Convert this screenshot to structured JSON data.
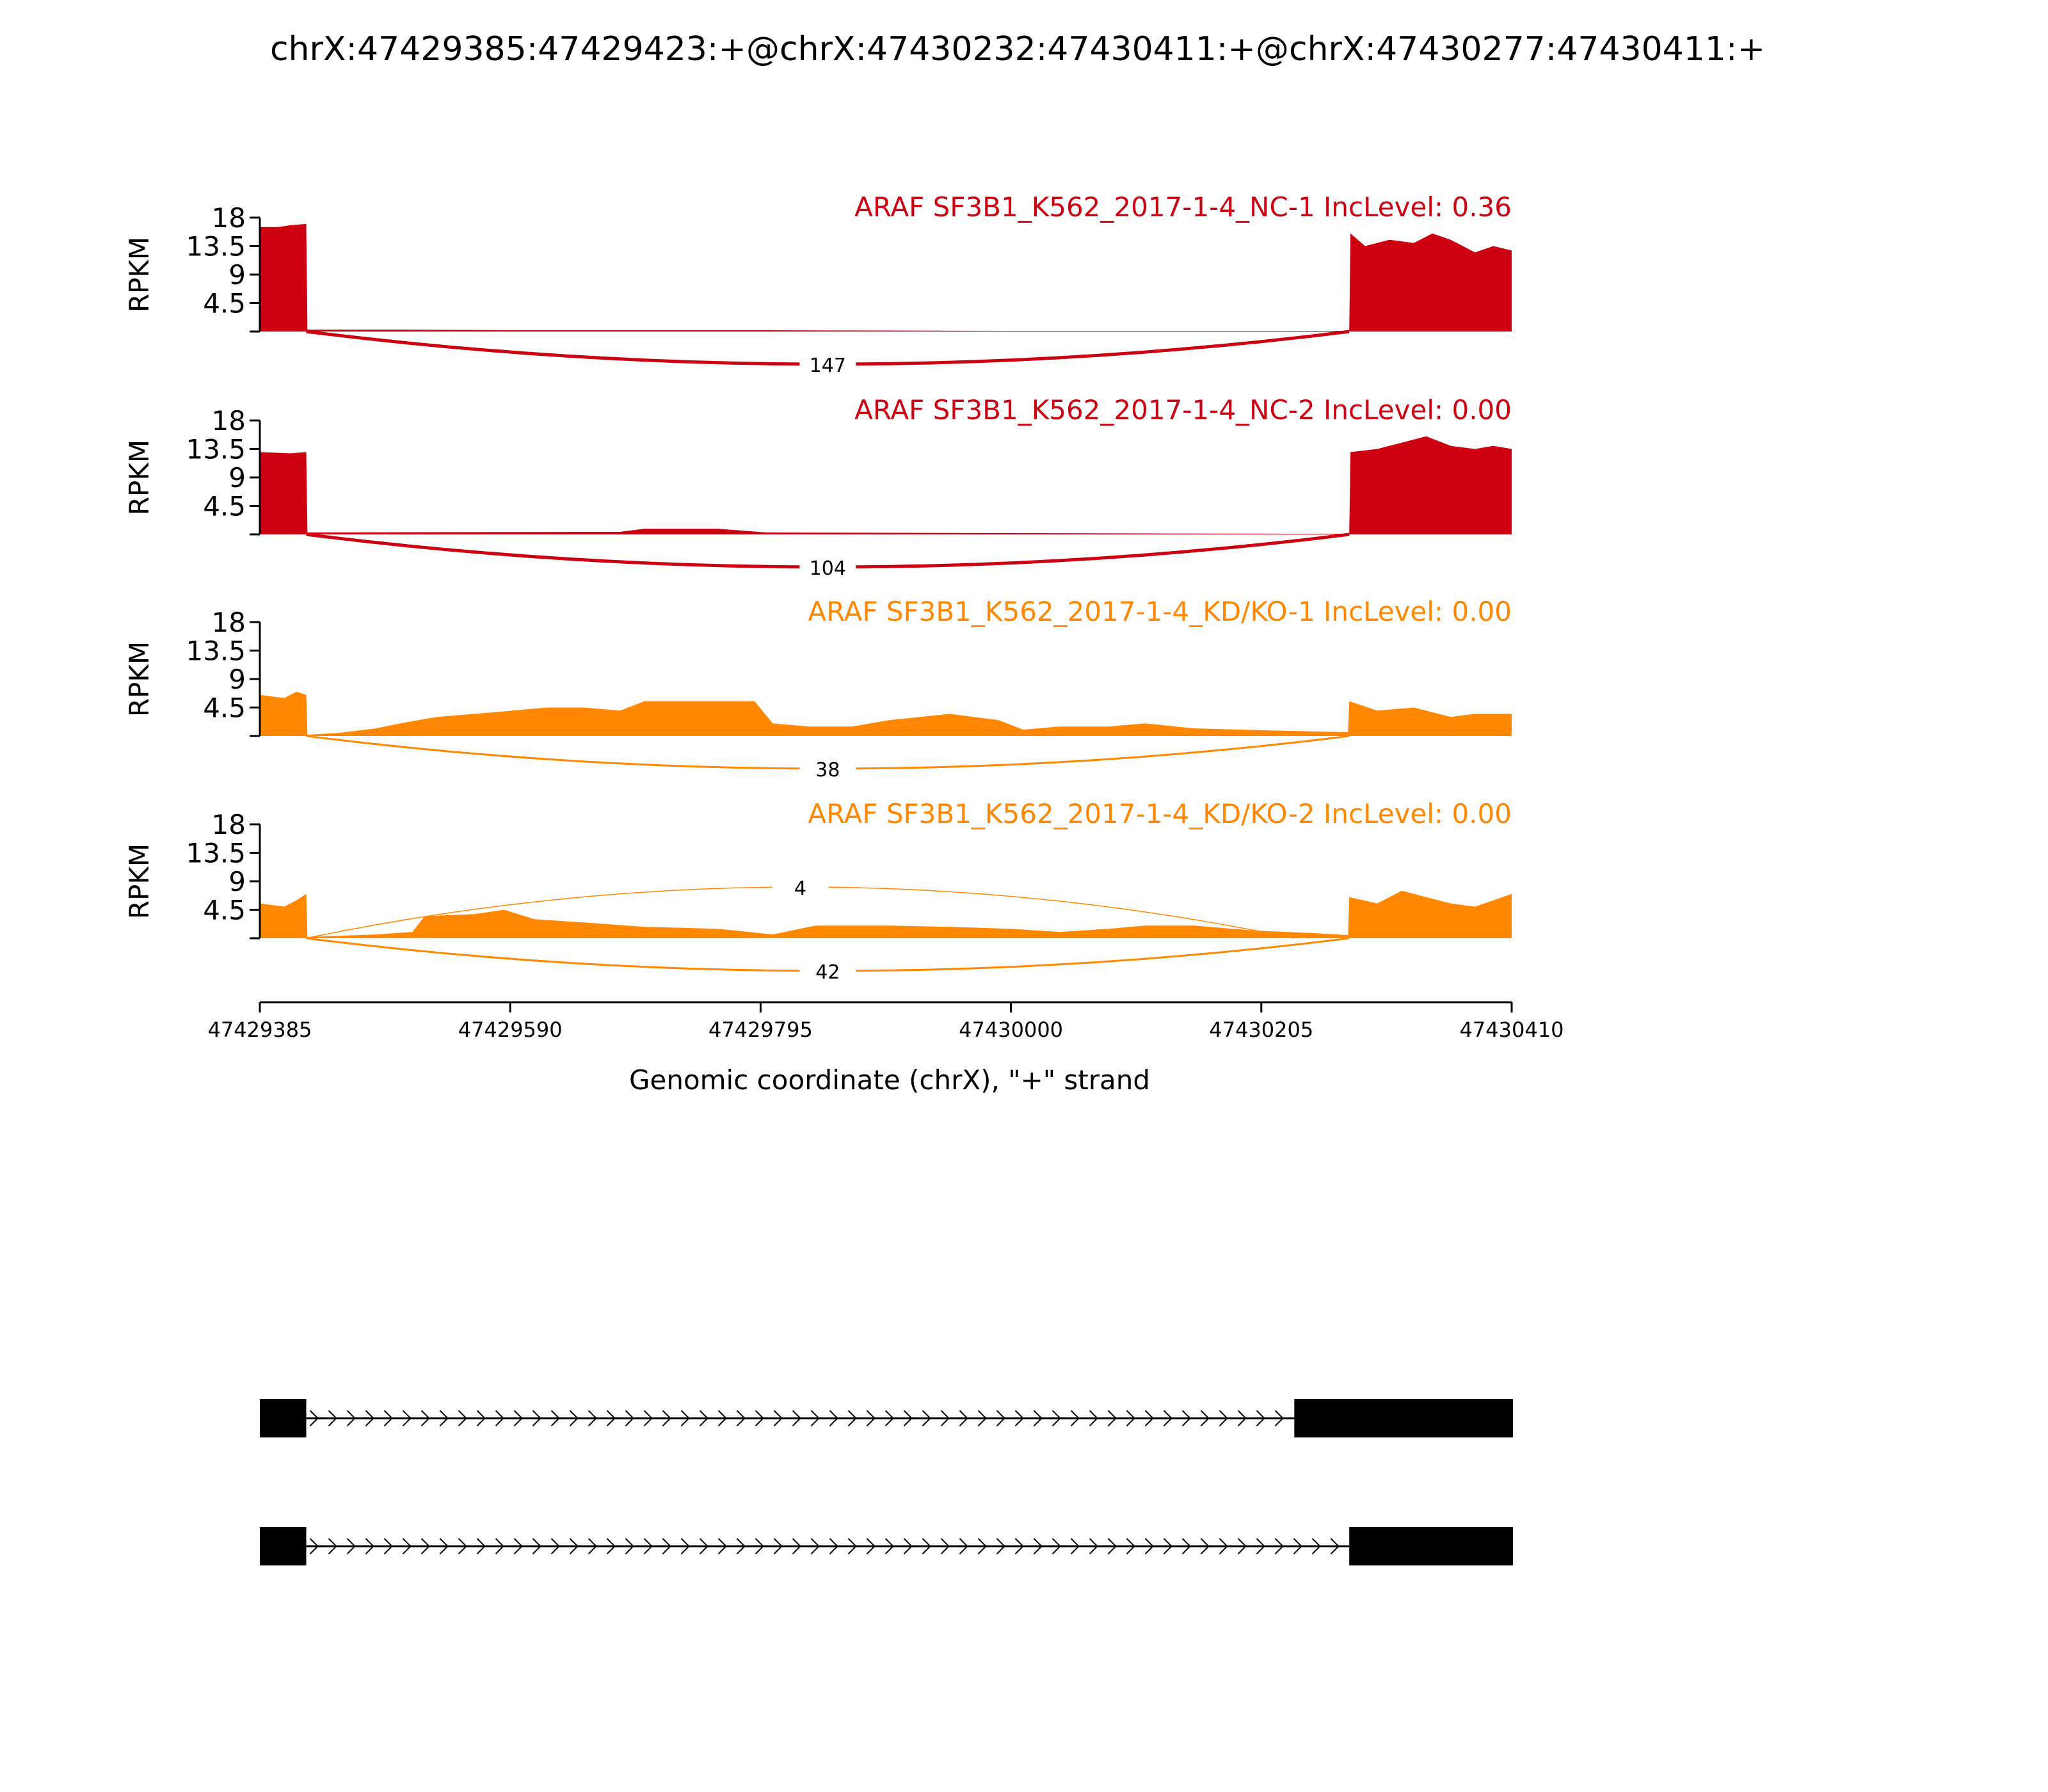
{
  "figure": {
    "title": "chrX:47429385:47429423:+@chrX:47430232:47430411:+@chrX:47430277:47430411:+"
  },
  "chart_data": {
    "type": "sashimi",
    "x_axis": {
      "label": "Genomic coordinate (chrX), \"+\" strand",
      "range": [
        47429385,
        47430410
      ],
      "ticks": [
        47429385,
        47429590,
        47429795,
        47430000,
        47430205,
        47430410
      ]
    },
    "y_axis": {
      "label": "RPKM",
      "range": [
        0,
        18
      ],
      "ticks": [
        "4.5",
        "9",
        "13.5",
        "18"
      ]
    },
    "exons": {
      "upstream": [
        47429385,
        47429423
      ],
      "alt_start": [
        47430232,
        47430411
      ],
      "short_start": [
        47430277,
        47430411
      ]
    },
    "tracks": [
      {
        "label": "ARAF SF3B1_K562_2017-1-4_NC-1 IncLevel: 0.36",
        "color": "#cc0011",
        "coverage": [
          [
            47429385,
            16.5
          ],
          [
            47429400,
            16.5
          ],
          [
            47429410,
            16.8
          ],
          [
            47429423,
            17.0
          ],
          [
            47429424,
            0.3
          ],
          [
            47429500,
            0.3
          ],
          [
            47429600,
            0.2
          ],
          [
            47429800,
            0.2
          ],
          [
            47430000,
            0.1
          ],
          [
            47430231,
            0.1
          ],
          [
            47430277,
            0.1
          ],
          [
            47430278,
            15.5
          ],
          [
            47430290,
            13.5
          ],
          [
            47430310,
            14.5
          ],
          [
            47430330,
            14.0
          ],
          [
            47430345,
            15.5
          ],
          [
            47430360,
            14.5
          ],
          [
            47430380,
            12.5
          ],
          [
            47430395,
            13.5
          ],
          [
            47430410,
            12.8
          ]
        ],
        "junctions": [
          {
            "from": 47429423,
            "to": 47430277,
            "count": "147",
            "side": "below"
          }
        ]
      },
      {
        "label": "ARAF SF3B1_K562_2017-1-4_NC-2 IncLevel: 0.00",
        "color": "#cc0011",
        "coverage": [
          [
            47429385,
            13.0
          ],
          [
            47429410,
            12.8
          ],
          [
            47429423,
            13.0
          ],
          [
            47429424,
            0.3
          ],
          [
            47429680,
            0.4
          ],
          [
            47429700,
            0.9
          ],
          [
            47429760,
            0.9
          ],
          [
            47429800,
            0.3
          ],
          [
            47430000,
            0.2
          ],
          [
            47430231,
            0.1
          ],
          [
            47430277,
            0.1
          ],
          [
            47430278,
            13.0
          ],
          [
            47430300,
            13.5
          ],
          [
            47430320,
            14.5
          ],
          [
            47430340,
            15.5
          ],
          [
            47430360,
            14.0
          ],
          [
            47430380,
            13.5
          ],
          [
            47430395,
            14.0
          ],
          [
            47430410,
            13.5
          ]
        ],
        "junctions": [
          {
            "from": 47429423,
            "to": 47430277,
            "count": "104",
            "side": "below"
          }
        ]
      },
      {
        "label": "ARAF SF3B1_K562_2017-1-4_KD/KO-1 IncLevel: 0.00",
        "color": "#ff8800",
        "coverage": [
          [
            47429385,
            6.5
          ],
          [
            47429405,
            6.0
          ],
          [
            47429415,
            7.0
          ],
          [
            47429423,
            6.5
          ],
          [
            47429424,
            0.2
          ],
          [
            47429450,
            0.5
          ],
          [
            47429480,
            1.2
          ],
          [
            47429500,
            2.0
          ],
          [
            47429530,
            3.0
          ],
          [
            47429580,
            3.8
          ],
          [
            47429620,
            4.5
          ],
          [
            47429650,
            4.5
          ],
          [
            47429680,
            4.0
          ],
          [
            47429700,
            5.5
          ],
          [
            47429750,
            5.5
          ],
          [
            47429790,
            5.5
          ],
          [
            47429805,
            2.0
          ],
          [
            47429835,
            1.5
          ],
          [
            47429870,
            1.5
          ],
          [
            47429900,
            2.5
          ],
          [
            47429950,
            3.5
          ],
          [
            47429990,
            2.5
          ],
          [
            47430010,
            1.0
          ],
          [
            47430040,
            1.5
          ],
          [
            47430080,
            1.5
          ],
          [
            47430110,
            2.0
          ],
          [
            47430150,
            1.2
          ],
          [
            47430230,
            0.8
          ],
          [
            47430276,
            0.6
          ],
          [
            47430277,
            5.5
          ],
          [
            47430300,
            4.0
          ],
          [
            47430330,
            4.5
          ],
          [
            47430360,
            3.0
          ],
          [
            47430380,
            3.5
          ],
          [
            47430410,
            3.5
          ]
        ],
        "junctions": [
          {
            "from": 47429423,
            "to": 47430277,
            "count": "38",
            "side": "below"
          }
        ]
      },
      {
        "label": "ARAF SF3B1_K562_2017-1-4_KD/KO-2 IncLevel: 0.00",
        "color": "#ff8800",
        "coverage": [
          [
            47429385,
            5.5
          ],
          [
            47429405,
            5.0
          ],
          [
            47429415,
            6.0
          ],
          [
            47429423,
            7.0
          ],
          [
            47429424,
            0.2
          ],
          [
            47429480,
            0.6
          ],
          [
            47429510,
            1.0
          ],
          [
            47429520,
            3.5
          ],
          [
            47429560,
            3.8
          ],
          [
            47429585,
            4.5
          ],
          [
            47429610,
            3.0
          ],
          [
            47429650,
            2.5
          ],
          [
            47429700,
            1.8
          ],
          [
            47429760,
            1.5
          ],
          [
            47429805,
            0.6
          ],
          [
            47429840,
            2.0
          ],
          [
            47429900,
            2.0
          ],
          [
            47429950,
            1.8
          ],
          [
            47430000,
            1.5
          ],
          [
            47430040,
            1.0
          ],
          [
            47430080,
            1.5
          ],
          [
            47430110,
            2.0
          ],
          [
            47430150,
            2.0
          ],
          [
            47430200,
            1.2
          ],
          [
            47430250,
            0.8
          ],
          [
            47430276,
            0.5
          ],
          [
            47430277,
            6.5
          ],
          [
            47430300,
            5.5
          ],
          [
            47430320,
            7.5
          ],
          [
            47430340,
            6.5
          ],
          [
            47430360,
            5.5
          ],
          [
            47430380,
            5.0
          ],
          [
            47430395,
            6.0
          ],
          [
            47430410,
            7.0
          ]
        ],
        "junctions": [
          {
            "from": 47429423,
            "to": 47430232,
            "count": "4",
            "side": "above"
          },
          {
            "from": 47429423,
            "to": 47430277,
            "count": "42",
            "side": "below"
          }
        ]
      }
    ],
    "transcripts": [
      {
        "exons": [
          [
            47429385,
            47429423
          ],
          [
            47430232,
            47430411
          ]
        ]
      },
      {
        "exons": [
          [
            47429385,
            47429423
          ],
          [
            47430277,
            47430411
          ]
        ]
      }
    ]
  }
}
